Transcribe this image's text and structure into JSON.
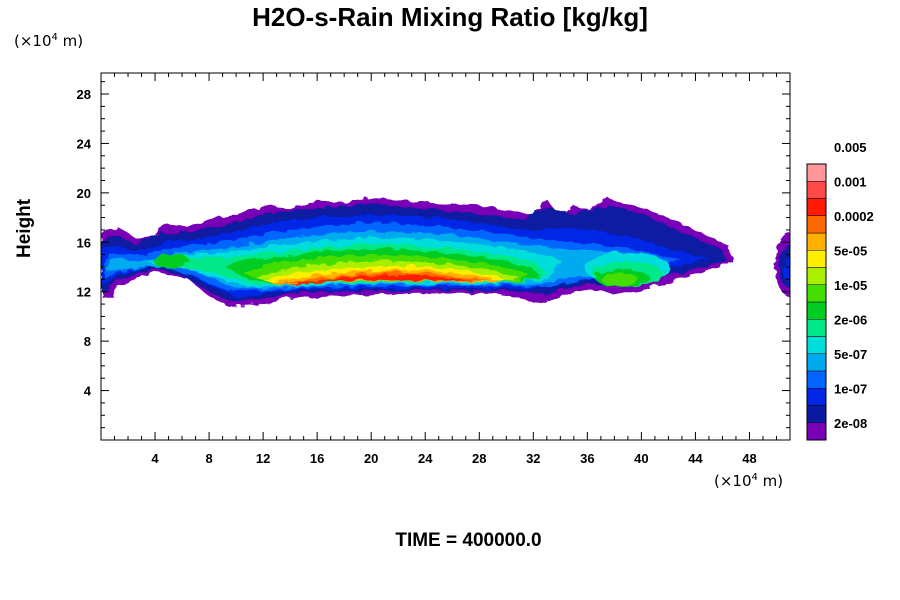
{
  "title": "H2O-s-Rain Mixing Ratio [kg/kg]",
  "x_unit": {
    "prefix": "(×10",
    "exp": "4",
    "suffix": " m)"
  },
  "y_unit": {
    "prefix": "(×10",
    "exp": "4",
    "suffix": " m)"
  },
  "time_label": "TIME = 400000.0",
  "chart_data": {
    "type": "heatmap",
    "title": "H2O-s-Rain Mixing Ratio [kg/kg]",
    "xlabel": "",
    "ylabel": "Height",
    "x_unit": "×10^4 m",
    "y_unit": "×10^4 m",
    "xlim": [
      0,
      51
    ],
    "ylim": [
      0,
      29.7
    ],
    "x_ticks": [
      "4",
      "8",
      "12",
      "16",
      "20",
      "24",
      "28",
      "32",
      "36",
      "40",
      "44",
      "48"
    ],
    "y_ticks": [
      "4",
      "8",
      "12",
      "16",
      "20",
      "24",
      "28"
    ],
    "grid": false,
    "colorbar": {
      "placement": "right",
      "levels": [
        "2e-08",
        "1e-07",
        "5e-07",
        "2e-06",
        "1e-05",
        "5e-05",
        "0.0002",
        "0.001",
        "0.005"
      ],
      "colors": [
        "#7a00b8",
        "#0a1aa0",
        "#0026e6",
        "#0066ff",
        "#00aaee",
        "#00dddd",
        "#00e888",
        "#00cc22",
        "#44dd00",
        "#aaee00",
        "#ffee00",
        "#ffb000",
        "#ff6a00",
        "#ff1a00",
        "#ff4a4a",
        "#ff9898"
      ]
    },
    "annotation": "TIME = 400000.0"
  }
}
